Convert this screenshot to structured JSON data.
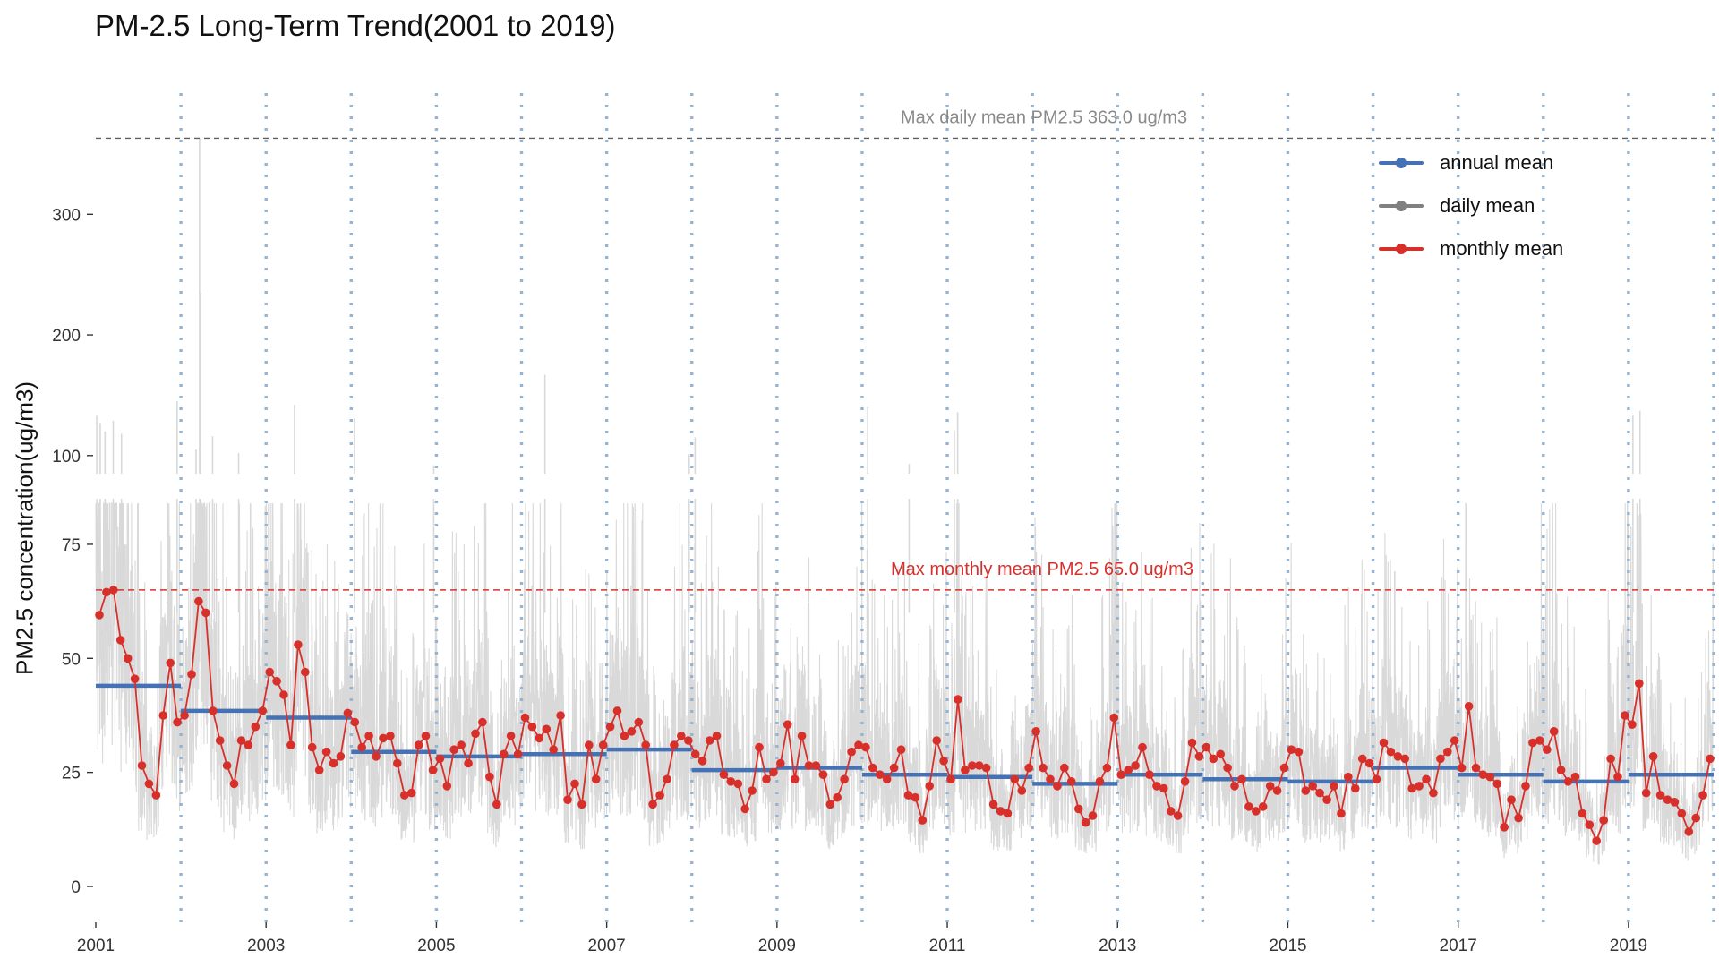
{
  "chart_data": {
    "type": "line",
    "title": "PM-2.5 Long-Term Trend(2001 to 2019)",
    "xlabel": "",
    "ylabel": "PM2.5 concentration(ug/m3)",
    "x_range": [
      2001,
      2020
    ],
    "x_ticks": [
      "2001",
      "2003",
      "2005",
      "2007",
      "2009",
      "2011",
      "2013",
      "2015",
      "2017",
      "2019"
    ],
    "y_axis": {
      "broken": true,
      "lower_segment": {
        "range": [
          0,
          85
        ],
        "ticks": [
          0,
          25,
          50,
          75
        ],
        "tick_labels": [
          "0",
          "25",
          "50",
          "75"
        ]
      },
      "upper_segment": {
        "range": [
          85,
          370
        ],
        "ticks": [
          100,
          200,
          300
        ],
        "tick_labels": [
          "100",
          "200",
          "300"
        ]
      }
    },
    "grid": "vertical dotted lines at each year start",
    "legend_position": "top-right",
    "colors": {
      "annual": "#4472B4",
      "daily": "#D9D9D9",
      "monthly": "#D7302B",
      "year_line": "#93B4D4",
      "max_daily_line": "#606060",
      "max_monthly_line": "#D7302B"
    },
    "legend": [
      {
        "label": "annual mean",
        "color": "#4472B4"
      },
      {
        "label": "daily mean",
        "color": "#808080"
      },
      {
        "label": "monthly mean",
        "color": "#D7302B"
      }
    ],
    "annotations": {
      "max_daily": {
        "value": 363.0,
        "label": "Max daily mean PM2.5 363.0 ug/m3"
      },
      "max_monthly": {
        "value": 65.0,
        "label": "Max monthly mean PM2.5 65.0 ug/m3"
      }
    },
    "series": [
      {
        "name": "annual mean",
        "years": [
          2001,
          2002,
          2003,
          2004,
          2005,
          2006,
          2007,
          2008,
          2009,
          2010,
          2011,
          2012,
          2013,
          2014,
          2015,
          2016,
          2017,
          2018,
          2019
        ],
        "values": [
          44,
          38.5,
          37,
          29.5,
          28.5,
          29,
          30,
          25.5,
          26,
          24.5,
          24,
          22.5,
          24.5,
          23.5,
          23,
          26,
          24.5,
          23,
          24.5
        ]
      },
      {
        "name": "monthly mean",
        "start": "2001-01",
        "values": [
          59.5,
          64.5,
          65.0,
          54.0,
          50.0,
          45.5,
          26.5,
          22.5,
          20.0,
          37.5,
          49.0,
          36.0,
          37.5,
          46.5,
          62.5,
          60.0,
          38.5,
          32.0,
          26.5,
          22.5,
          32.0,
          31.0,
          35.0,
          38.5,
          47.0,
          45.0,
          42.0,
          31.0,
          53.0,
          47.0,
          30.5,
          25.5,
          29.5,
          27.0,
          28.5,
          38.0,
          36.0,
          30.5,
          33.0,
          28.5,
          32.5,
          33.0,
          27.0,
          20.0,
          20.5,
          31.0,
          33.0,
          25.5,
          28.0,
          22.0,
          30.0,
          31.0,
          27.0,
          33.5,
          36.0,
          24.0,
          18.0,
          29.0,
          33.0,
          29.0,
          37.0,
          35.0,
          32.5,
          34.5,
          30.0,
          37.5,
          19.0,
          22.5,
          18.0,
          31.0,
          23.5,
          31.0,
          35.0,
          38.5,
          33.0,
          34.0,
          36.0,
          31.0,
          18.0,
          20.0,
          23.5,
          31.0,
          33.0,
          32.0,
          29.0,
          27.5,
          32.0,
          33.0,
          24.5,
          23.0,
          22.5,
          17.0,
          21.0,
          30.5,
          23.5,
          25.0,
          27.0,
          35.5,
          23.5,
          33.0,
          26.5,
          26.5,
          24.5,
          18.0,
          19.5,
          23.5,
          29.5,
          31.0,
          30.5,
          26.0,
          24.5,
          23.5,
          26.0,
          30.0,
          20.0,
          19.5,
          14.5,
          22.0,
          32.0,
          27.5,
          23.5,
          41.0,
          25.5,
          26.5,
          26.5,
          26.0,
          18.0,
          16.5,
          16.0,
          23.5,
          21.0,
          26.0,
          34.0,
          26.0,
          23.5,
          22.0,
          26.0,
          23.0,
          17.0,
          14.0,
          15.5,
          23.0,
          26.0,
          37.0,
          24.5,
          25.5,
          26.5,
          30.5,
          24.5,
          22.0,
          21.5,
          16.5,
          15.5,
          23.0,
          31.5,
          28.5,
          30.5,
          28.0,
          29.0,
          26.0,
          22.0,
          23.5,
          17.5,
          16.5,
          17.5,
          22.0,
          21.0,
          26.0,
          30.0,
          29.5,
          21.0,
          22.0,
          20.5,
          19.0,
          22.0,
          16.0,
          24.0,
          21.5,
          28.0,
          27.0,
          23.5,
          31.5,
          29.5,
          28.5,
          28.0,
          21.5,
          22.0,
          23.5,
          20.5,
          28.0,
          29.5,
          32.0,
          26.0,
          39.5,
          26.0,
          24.5,
          24.0,
          22.5,
          13.0,
          19.0,
          15.0,
          22.0,
          31.5,
          32.0,
          30.0,
          34.0,
          25.5,
          23.0,
          24.0,
          16.0,
          13.5,
          10.0,
          14.5,
          28.0,
          24.0,
          37.5,
          35.5,
          44.5,
          20.5,
          28.5,
          20.0,
          19.0,
          18.5,
          16.0,
          12.0,
          15.0,
          20.0,
          28.0
        ]
      },
      {
        "name": "daily mean",
        "note": "daily values fluctuate densely around the monthly mean; notable spikes (date, value)",
        "spikes": [
          [
            "2001-01-05",
            133
          ],
          [
            "2001-01-20",
            127
          ],
          [
            "2001-02-10",
            120
          ],
          [
            "2001-03-15",
            129
          ],
          [
            "2001-04-20",
            118
          ],
          [
            "2001-12-15",
            145
          ],
          [
            "2002-03-20",
            363
          ],
          [
            "2002-03-25",
            235
          ],
          [
            "2002-03-05",
            105
          ],
          [
            "2002-05-15",
            116
          ],
          [
            "2002-09-05",
            102
          ],
          [
            "2003-05-01",
            142
          ],
          [
            "2004-01-15",
            131
          ],
          [
            "2004-12-20",
            92
          ],
          [
            "2006-04-10",
            167
          ],
          [
            "2007-12-20",
            101
          ],
          [
            "2008-01-15",
            115
          ],
          [
            "2010-01-25",
            140
          ],
          [
            "2010-07-20",
            93
          ],
          [
            "2011-02-01",
            121
          ],
          [
            "2011-02-15",
            136
          ],
          [
            "2019-01-20",
            133
          ],
          [
            "2019-02-20",
            137
          ]
        ]
      }
    ]
  }
}
